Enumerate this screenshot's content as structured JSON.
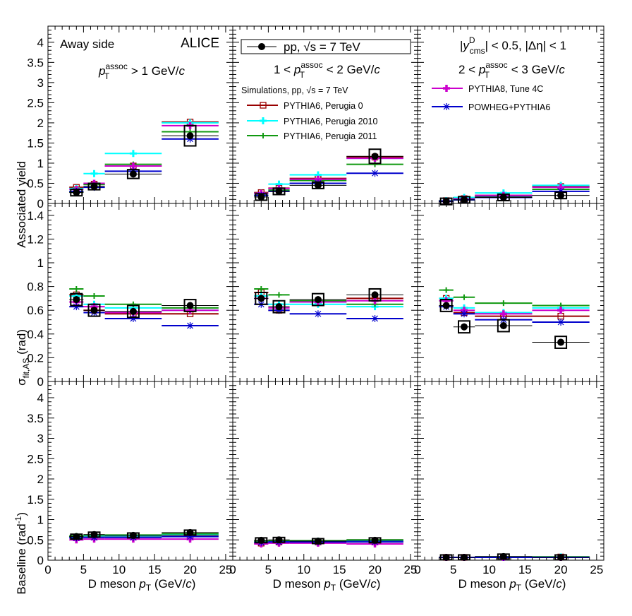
{
  "texts": {
    "label_away": "Away side",
    "label_alice": "ALICE",
    "label_pt_col1": "p_T^assoc > 1 GeV/c",
    "label_pt_col2": "1 < p_T^assoc < 2 GeV/c",
    "label_pt_col3": "2 < p_T^assoc < 3 GeV/c",
    "label_rapidity": "|y^D_cms| < 0.5, |Δη| < 1",
    "legend_data": "pp, √s = 7 TeV",
    "legend_sim_header": "Simulations, pp, √s = 7 TeV",
    "ylabel_top": "Associated yield",
    "ylabel_mid": "σ_fit,AS (rad)",
    "ylabel_bot": "Baseline (rad^-1)",
    "xlabel": "D meson p_T (GeV/c)"
  },
  "colors": {
    "data": "#000000",
    "perugia0": "#990000",
    "perugia2010": "#00ffff",
    "perugia2011": "#119911",
    "pythia8": "#cc00cc",
    "powheg": "#0000cc"
  },
  "chart_data": {
    "type": "scatter",
    "x_axis": {
      "label": "D meson p_T (GeV/c)",
      "range": [
        0,
        26
      ],
      "ticks": [
        "0",
        "5",
        "10",
        "15",
        "20",
        "25"
      ]
    },
    "rows": [
      {
        "ylabel": "Associated yield",
        "ylim": [
          0,
          4.4
        ],
        "ticks": [
          "0",
          "0.5",
          "1",
          "1.5",
          "2",
          "2.5",
          "3",
          "3.5",
          "4"
        ]
      },
      {
        "ylabel": "σ_fit,AS (rad)",
        "ylim": [
          0,
          1.5
        ],
        "ticks": [
          "0",
          "0.2",
          "0.4",
          "0.6",
          "0.8",
          "1",
          "1.2",
          "1.4"
        ]
      },
      {
        "ylabel": "Baseline (rad^-1)",
        "ylim": [
          0,
          4.4
        ],
        "ticks": [
          "0",
          "0.5",
          "1",
          "1.5",
          "2",
          "2.5",
          "3",
          "3.5",
          "4"
        ]
      }
    ],
    "columns": [
      "p_T^assoc > 1 GeV/c",
      "1 < p_T^assoc < 2 GeV/c",
      "2 < p_T^assoc < 3 GeV/c"
    ],
    "x_bins": [
      [
        3,
        5
      ],
      [
        5,
        8
      ],
      [
        8,
        16
      ],
      [
        16,
        24
      ]
    ],
    "x_centers": [
      4,
      6.5,
      12,
      20
    ],
    "series": [
      {
        "name": "pp, √s = 7 TeV",
        "key": "data",
        "marker": "dot",
        "values": [
          [
            [
              0.27,
              0.42,
              0.73,
              1.68
            ],
            [
              0.16,
              0.3,
              0.45,
              1.17
            ],
            [
              0.05,
              0.09,
              0.15,
              0.2
            ]
          ],
          [
            [
              0.69,
              0.6,
              0.59,
              0.64
            ],
            [
              0.7,
              0.63,
              0.69,
              0.73
            ],
            [
              0.64,
              0.46,
              0.47,
              0.33
            ]
          ],
          [
            [
              0.58,
              0.63,
              0.61,
              0.68
            ],
            [
              0.49,
              0.5,
              0.47,
              0.49
            ],
            [
              0.07,
              0.07,
              0.09,
              0.07
            ]
          ]
        ]
      },
      {
        "name": "PYTHIA6, Perugia 0",
        "key": "perugia0",
        "marker": "open-square",
        "values": [
          [
            [
              0.4,
              0.48,
              0.93,
              2.02
            ],
            [
              0.27,
              0.38,
              0.62,
              1.15
            ],
            [
              0.07,
              0.12,
              0.2,
              0.42
            ]
          ],
          [
            [
              0.73,
              0.6,
              0.57,
              0.57
            ],
            [
              0.75,
              0.6,
              0.67,
              0.7
            ],
            [
              0.7,
              0.58,
              0.55,
              0.55
            ]
          ],
          [
            [
              0.55,
              0.58,
              0.58,
              0.6
            ],
            [
              0.42,
              0.45,
              0.45,
              0.45
            ],
            [
              0.07,
              0.07,
              0.08,
              0.08
            ]
          ]
        ]
      },
      {
        "name": "PYTHIA6, Perugia 2010",
        "key": "perugia2010",
        "marker": "cross",
        "values": [
          [
            [
              0.37,
              0.74,
              1.24,
              2.0
            ],
            [
              0.25,
              0.48,
              0.71,
              1.12
            ],
            [
              0.07,
              0.15,
              0.26,
              0.45
            ]
          ],
          [
            [
              0.72,
              0.65,
              0.62,
              0.6
            ],
            [
              0.72,
              0.65,
              0.65,
              0.63
            ],
            [
              0.7,
              0.62,
              0.58,
              0.62
            ]
          ],
          [
            [
              0.58,
              0.6,
              0.6,
              0.63
            ],
            [
              0.45,
              0.47,
              0.47,
              0.48
            ],
            [
              0.07,
              0.07,
              0.08,
              0.08
            ]
          ]
        ]
      },
      {
        "name": "PYTHIA6, Perugia 2011",
        "key": "perugia2011",
        "marker": "plus",
        "values": [
          [
            [
              0.29,
              0.47,
              0.97,
              1.78
            ],
            [
              0.2,
              0.33,
              0.57,
              0.97
            ],
            [
              0.06,
              0.09,
              0.18,
              0.35
            ]
          ],
          [
            [
              0.78,
              0.72,
              0.65,
              0.62
            ],
            [
              0.78,
              0.73,
              0.68,
              0.65
            ],
            [
              0.77,
              0.71,
              0.66,
              0.64
            ]
          ],
          [
            [
              0.6,
              0.62,
              0.62,
              0.65
            ],
            [
              0.47,
              0.48,
              0.48,
              0.5
            ],
            [
              0.07,
              0.07,
              0.08,
              0.08
            ]
          ]
        ]
      },
      {
        "name": "PYTHIA8, Tune 4C",
        "key": "pythia8",
        "marker": "filled-cross",
        "values": [
          [
            [
              0.35,
              0.5,
              0.93,
              1.93
            ],
            [
              0.25,
              0.37,
              0.6,
              1.12
            ],
            [
              0.06,
              0.11,
              0.2,
              0.4
            ]
          ],
          [
            [
              0.67,
              0.63,
              0.58,
              0.6
            ],
            [
              0.7,
              0.62,
              0.67,
              0.68
            ],
            [
              0.68,
              0.6,
              0.57,
              0.6
            ]
          ],
          [
            [
              0.5,
              0.52,
              0.52,
              0.52
            ],
            [
              0.4,
              0.42,
              0.42,
              0.4
            ],
            [
              0.07,
              0.07,
              0.07,
              0.07
            ]
          ]
        ]
      },
      {
        "name": "POWHEG+PYTHIA6",
        "key": "powheg",
        "marker": "asterisk",
        "values": [
          [
            [
              0.3,
              0.4,
              0.8,
              1.6
            ],
            [
              0.2,
              0.3,
              0.5,
              0.75
            ],
            [
              0.05,
              0.09,
              0.15,
              0.3
            ]
          ],
          [
            [
              0.63,
              0.58,
              0.53,
              0.47
            ],
            [
              0.65,
              0.6,
              0.57,
              0.53
            ],
            [
              0.63,
              0.57,
              0.52,
              0.5
            ]
          ],
          [
            [
              0.55,
              0.56,
              0.56,
              0.58
            ],
            [
              0.44,
              0.45,
              0.45,
              0.45
            ],
            [
              0.07,
              0.07,
              0.07,
              0.07
            ]
          ]
        ]
      }
    ]
  }
}
